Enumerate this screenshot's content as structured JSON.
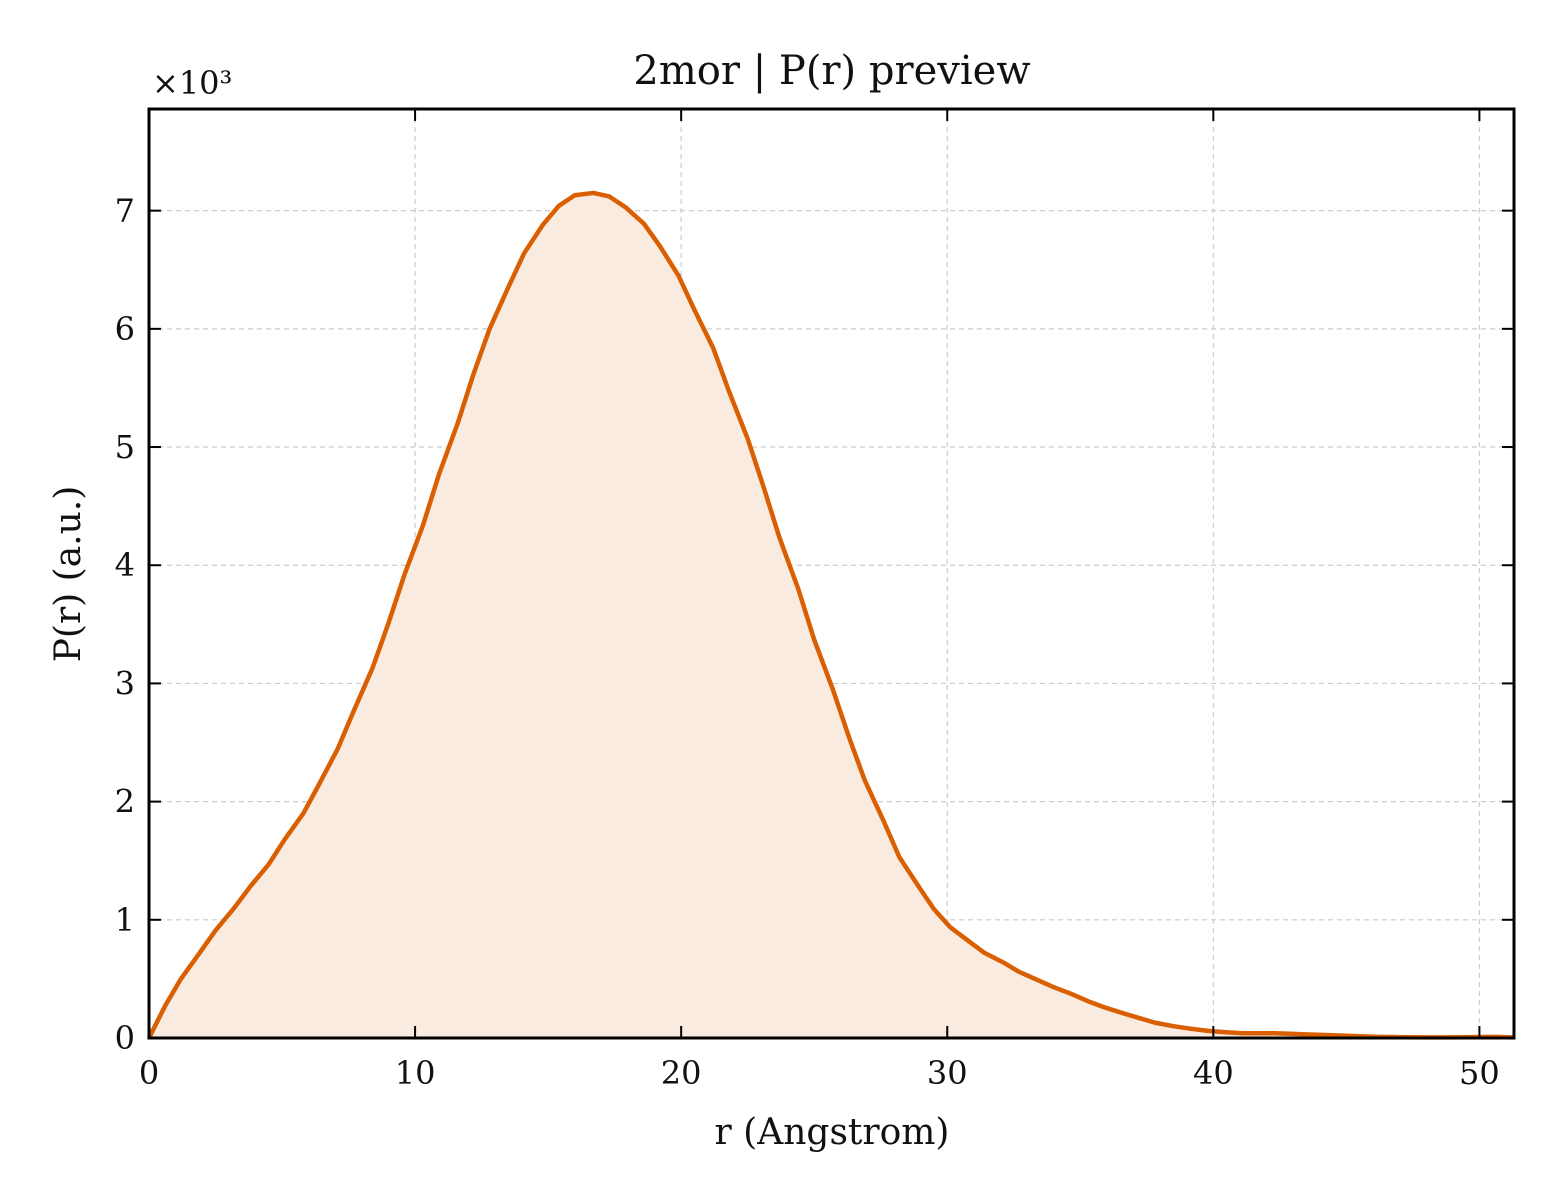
{
  "chart_data": {
    "type": "area",
    "title": "2mor | P(r) preview",
    "xlabel": "r (Angstrom)",
    "ylabel": "P(r) (a.u.)",
    "y_multiplier_label": "×10³",
    "xlim": [
      0,
      51.3
    ],
    "ylim": [
      0,
      7.86
    ],
    "x_ticks": [
      "0",
      "10",
      "20",
      "30",
      "40",
      "50"
    ],
    "y_ticks": [
      "0",
      "1",
      "2",
      "3",
      "4",
      "5",
      "6",
      "7"
    ],
    "grid": true,
    "line_color": "#d95f02",
    "fill_color": "#f9ebe0",
    "x": [
      0,
      0.6,
      1.2,
      1.9,
      2.5,
      3.2,
      3.8,
      4.5,
      5.1,
      5.8,
      6.4,
      7.1,
      7.7,
      8.4,
      9.0,
      9.6,
      10.3,
      10.9,
      11.6,
      12.2,
      12.8,
      13.5,
      14.1,
      14.8,
      15.4,
      16.0,
      16.7,
      17.3,
      17.9,
      18.6,
      19.2,
      19.9,
      20.5,
      21.2,
      21.8,
      22.5,
      23.1,
      23.7,
      24.4,
      25.0,
      25.7,
      26.3,
      26.9,
      27.6,
      28.2,
      28.9,
      29.5,
      30.1,
      30.8,
      31.4,
      32.1,
      32.7,
      33.4,
      34.0,
      34.7,
      35.3,
      35.9,
      36.6,
      37.2,
      37.8,
      38.5,
      39.1,
      39.8,
      40.4,
      41.1,
      41.7,
      42.3,
      43.0,
      43.6,
      44.2,
      44.9,
      45.5,
      46.2,
      46.8,
      47.4,
      48.1,
      48.7,
      49.4,
      50.0,
      50.6,
      51.3
    ],
    "y": [
      0,
      0.27,
      0.5,
      0.72,
      0.91,
      1.1,
      1.28,
      1.47,
      1.68,
      1.9,
      2.15,
      2.45,
      2.77,
      3.13,
      3.51,
      3.92,
      4.34,
      4.77,
      5.2,
      5.62,
      6.0,
      6.35,
      6.64,
      6.88,
      7.04,
      7.13,
      7.15,
      7.12,
      7.03,
      6.89,
      6.7,
      6.45,
      6.16,
      5.84,
      5.47,
      5.07,
      4.66,
      4.23,
      3.8,
      3.37,
      2.95,
      2.55,
      2.18,
      1.84,
      1.53,
      1.29,
      1.09,
      0.94,
      0.82,
      0.72,
      0.64,
      0.56,
      0.49,
      0.43,
      0.37,
      0.31,
      0.26,
      0.21,
      0.17,
      0.13,
      0.1,
      0.08,
      0.06,
      0.05,
      0.04,
      0.04,
      0.04,
      0.035,
      0.03,
      0.025,
      0.02,
      0.015,
      0.01,
      0.008,
      0.006,
      0.005,
      0.005,
      0.006,
      0.008,
      0.01,
      0.005
    ]
  }
}
